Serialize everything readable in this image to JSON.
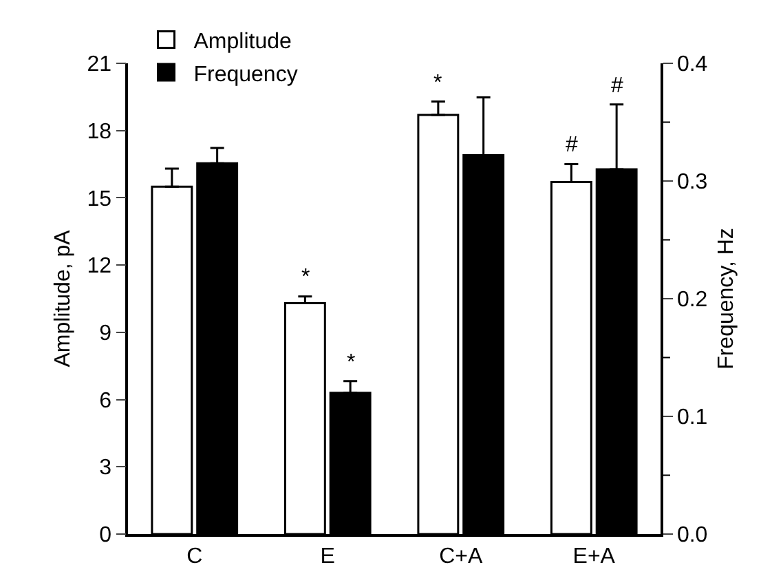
{
  "chart_data": {
    "type": "bar",
    "categories": [
      "C",
      "E",
      "C+A",
      "E+A"
    ],
    "ylabel": "Amplitude, pA",
    "y2label": "Frequency, Hz",
    "series": [
      {
        "name": "Amplitude",
        "color": "#ffffff",
        "values": [
          15.5,
          10.3,
          18.7,
          15.7
        ],
        "errors": [
          [
            15.5,
            16.3
          ],
          [
            10.3,
            10.6
          ],
          [
            18.7,
            19.3
          ],
          [
            15.7,
            16.5
          ]
        ]
      },
      {
        "name": "Frequency",
        "color": "#000000",
        "axis": "y2",
        "values": [
          0.315,
          0.12,
          0.322,
          0.31
        ],
        "errors": [
          [
            0.315,
            0.328
          ],
          [
            0.12,
            0.13
          ],
          [
            0.322,
            0.371
          ],
          [
            0.31,
            0.365
          ]
        ]
      }
    ],
    "ylim": [
      0,
      21
    ],
    "yticks": [
      0,
      3,
      6,
      9,
      12,
      15,
      18,
      21
    ],
    "y2lim": [
      0,
      0.4
    ],
    "y2ticks": [
      {
        "value": 0,
        "label": "0.0"
      },
      {
        "value": 0.05,
        "label": null
      },
      {
        "value": 0.1,
        "label": "0.1"
      },
      {
        "value": 0.15,
        "label": null
      },
      {
        "value": 0.2,
        "label": "0.2"
      },
      {
        "value": 0.25,
        "label": null
      },
      {
        "value": 0.3,
        "label": "0.3"
      },
      {
        "value": 0.35,
        "label": null
      },
      {
        "value": 0.4,
        "label": "0.4"
      }
    ],
    "annotations": [
      "*",
      "*",
      "*",
      "#",
      "#"
    ],
    "legend": "top left"
  }
}
